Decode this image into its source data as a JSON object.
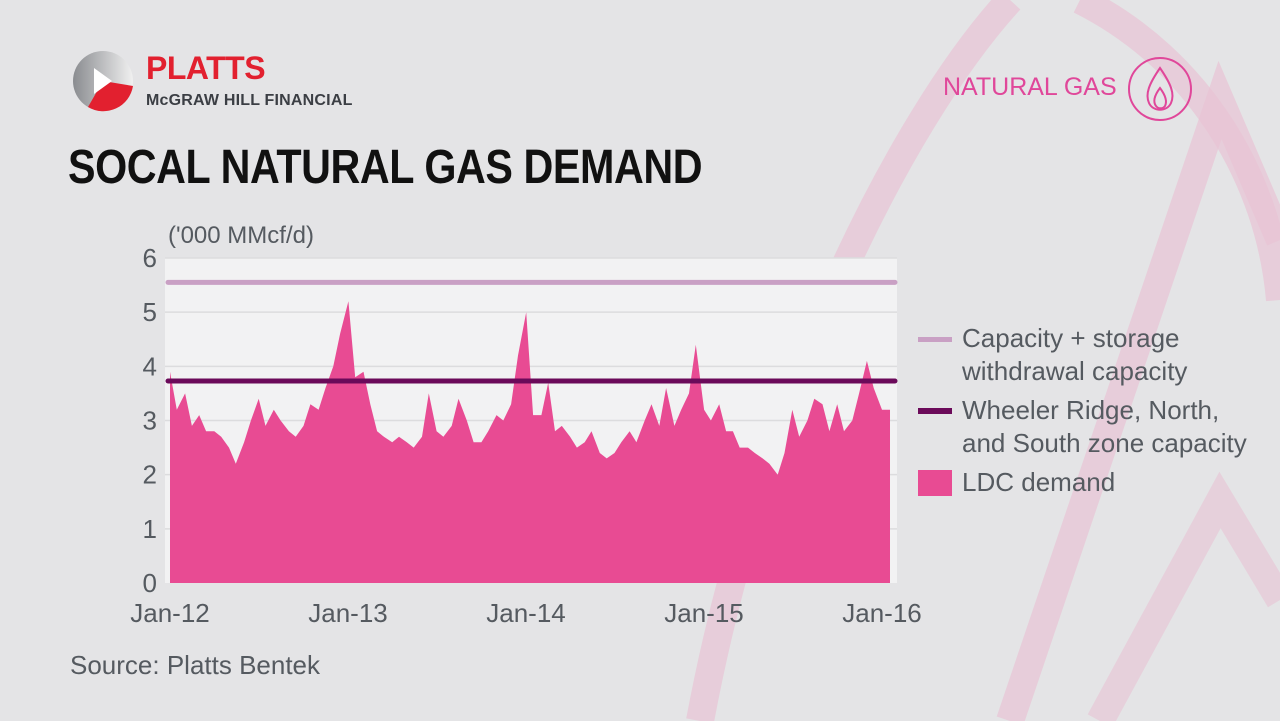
{
  "brand": {
    "name": "PLATTS",
    "subtitle": "McGRAW HILL FINANCIAL"
  },
  "tag": {
    "label": "NATURAL GAS",
    "icon": "flame-icon"
  },
  "title": "SOCAL NATURAL GAS DEMAND",
  "source": "Source: Platts Bentek",
  "colors": {
    "background": "#e4e4e6",
    "plot_bg": "#f2f2f3",
    "accent": "#e0479a",
    "ldc": "#e84b93",
    "capacity_storage": "#c9a0c4",
    "zone_capacity": "#6b0a5a",
    "brand_red": "#e2202f"
  },
  "chart_data": {
    "type": "area",
    "title": "SOCAL NATURAL GAS DEMAND",
    "ylabel": "('000 MMcf/d)",
    "ylim": [
      0,
      6
    ],
    "yticks": [
      "0",
      "1",
      "2",
      "3",
      "4",
      "5",
      "6"
    ],
    "xticks": [
      "Jan-12",
      "Jan-13",
      "Jan-14",
      "Jan-15",
      "Jan-16"
    ],
    "grid": true,
    "legend_position": "right",
    "x": [
      "2012-01-01",
      "2012-01-15",
      "2012-02-01",
      "2012-02-15",
      "2012-03-01",
      "2012-03-15",
      "2012-04-01",
      "2012-04-15",
      "2012-05-01",
      "2012-05-15",
      "2012-06-01",
      "2012-06-15",
      "2012-07-01",
      "2012-07-15",
      "2012-08-01",
      "2012-08-15",
      "2012-09-01",
      "2012-09-15",
      "2012-10-01",
      "2012-10-15",
      "2012-11-01",
      "2012-11-15",
      "2012-12-01",
      "2012-12-15",
      "2013-01-01",
      "2013-01-15",
      "2013-02-01",
      "2013-02-15",
      "2013-03-01",
      "2013-03-15",
      "2013-04-01",
      "2013-04-15",
      "2013-05-01",
      "2013-05-15",
      "2013-06-01",
      "2013-06-15",
      "2013-07-01",
      "2013-07-15",
      "2013-08-01",
      "2013-08-15",
      "2013-09-01",
      "2013-09-15",
      "2013-10-01",
      "2013-10-15",
      "2013-11-01",
      "2013-11-15",
      "2013-12-01",
      "2013-12-15",
      "2014-01-01",
      "2014-01-15",
      "2014-02-01",
      "2014-02-15",
      "2014-03-01",
      "2014-03-15",
      "2014-04-01",
      "2014-04-15",
      "2014-05-01",
      "2014-05-15",
      "2014-06-01",
      "2014-06-15",
      "2014-07-01",
      "2014-07-15",
      "2014-08-01",
      "2014-08-15",
      "2014-09-01",
      "2014-09-15",
      "2014-10-01",
      "2014-10-15",
      "2014-11-01",
      "2014-11-15",
      "2014-12-01",
      "2014-12-15",
      "2015-01-01",
      "2015-01-15",
      "2015-02-01",
      "2015-02-15",
      "2015-03-01",
      "2015-03-15",
      "2015-04-01",
      "2015-04-15",
      "2015-05-01",
      "2015-05-15",
      "2015-06-01",
      "2015-06-15",
      "2015-07-01",
      "2015-07-15",
      "2015-08-01",
      "2015-08-15",
      "2015-09-01",
      "2015-09-15",
      "2015-10-01",
      "2015-10-15",
      "2015-11-01",
      "2015-11-15",
      "2015-12-01",
      "2015-12-15",
      "2016-01-01"
    ],
    "series": [
      {
        "name": "Capacity + storage withdrawal capacity",
        "type": "line",
        "value": 5.55
      },
      {
        "name": "Wheeler Ridge, North, and South zone capacity",
        "type": "line",
        "value": 3.73
      },
      {
        "name": "LDC demand",
        "type": "area",
        "values": [
          3.9,
          3.2,
          3.5,
          2.9,
          3.1,
          2.8,
          2.8,
          2.7,
          2.5,
          2.2,
          2.6,
          3.0,
          3.4,
          2.9,
          3.2,
          3.0,
          2.8,
          2.7,
          2.9,
          3.3,
          3.2,
          3.6,
          4.0,
          4.6,
          5.2,
          3.8,
          3.9,
          3.3,
          2.8,
          2.7,
          2.6,
          2.7,
          2.6,
          2.5,
          2.7,
          3.5,
          2.8,
          2.7,
          2.9,
          3.4,
          3.0,
          2.6,
          2.6,
          2.8,
          3.1,
          3.0,
          3.3,
          4.2,
          5.0,
          3.1,
          3.1,
          3.7,
          2.8,
          2.9,
          2.7,
          2.5,
          2.6,
          2.8,
          2.4,
          2.3,
          2.4,
          2.6,
          2.8,
          2.6,
          3.0,
          3.3,
          2.9,
          3.6,
          2.9,
          3.2,
          3.5,
          4.4,
          3.2,
          3.0,
          3.3,
          2.8,
          2.8,
          2.5,
          2.5,
          2.4,
          2.3,
          2.2,
          2.0,
          2.4,
          3.2,
          2.7,
          3.0,
          3.4,
          3.3,
          2.8,
          3.3,
          2.8,
          3.0,
          3.5,
          4.1,
          3.6,
          3.2
        ]
      }
    ]
  },
  "legend": [
    {
      "label_line1": "Capacity + storage",
      "label_line2": "withdrawal capacity"
    },
    {
      "label_line1": "Wheeler Ridge, North,",
      "label_line2": "and South zone capacity"
    },
    {
      "label_line1": "LDC demand"
    }
  ]
}
